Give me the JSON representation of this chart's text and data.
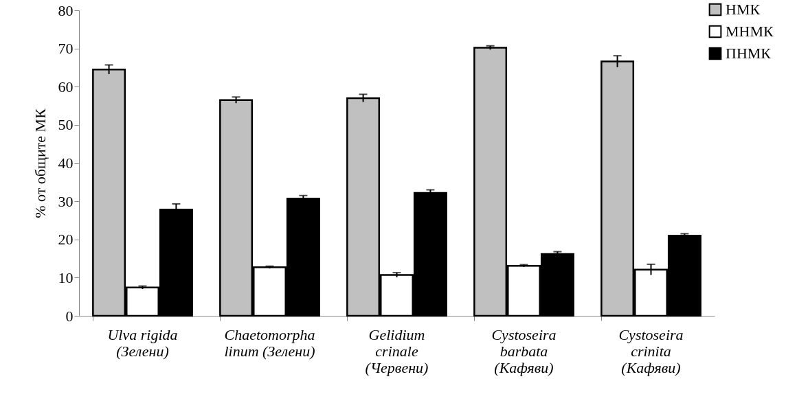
{
  "chart_data": {
    "type": "bar",
    "ylabel": "% от общите МК",
    "categories": [
      "Ulva rigida\n(Зелени)",
      "Chaetomorpha\nlinum (Зелени)",
      "Gelidium\ncrinale\n(Червени)",
      "Cystoseira\nbarbata\n(Кафяви)",
      "Cystoseira\ncrinita\n(Кафяви)"
    ],
    "series": [
      {
        "name": "НМК",
        "color": "#c0c0c0",
        "values": [
          64.5,
          56.5,
          57,
          70.2,
          66.6
        ],
        "errors": [
          1.2,
          0.8,
          1.0,
          0.5,
          1.5
        ]
      },
      {
        "name": "МНМК",
        "color": "#ffffff",
        "values": [
          7.4,
          12.7,
          10.7,
          13.1,
          12.1
        ],
        "errors": [
          0.4,
          0.3,
          0.6,
          0.3,
          1.4
        ]
      },
      {
        "name": "ПНМК",
        "color": "#000000",
        "values": [
          27.8,
          30.7,
          32.2,
          16.2,
          21
        ],
        "errors": [
          1.5,
          0.8,
          0.8,
          0.6,
          0.5
        ]
      }
    ],
    "ylim": [
      0,
      80
    ],
    "yticks": [
      0,
      10,
      20,
      30,
      40,
      50,
      60,
      70,
      80
    ],
    "grid": false,
    "legend": "top right"
  }
}
